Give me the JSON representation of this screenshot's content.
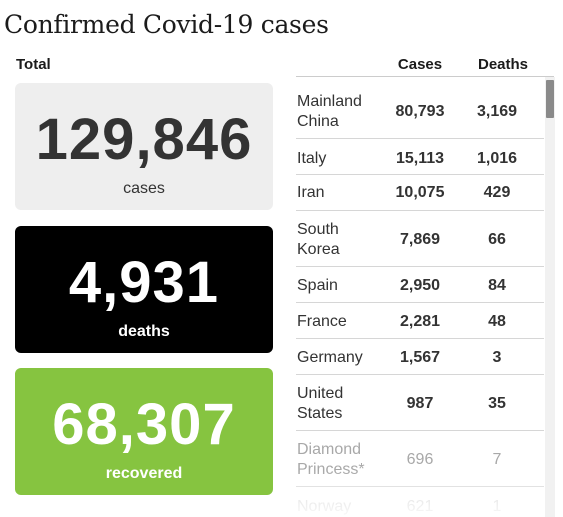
{
  "title": "Confirmed Covid-19 cases",
  "total_label": "Total",
  "cards": {
    "cases": {
      "value": "129,846",
      "label": "cases",
      "color": "#eeeeee"
    },
    "deaths": {
      "value": "4,931",
      "label": "deaths",
      "color": "#000000"
    },
    "recovered": {
      "value": "68,307",
      "label": "recovered",
      "color": "#86c440"
    }
  },
  "table": {
    "headers": {
      "cases": "Cases",
      "deaths": "Deaths"
    },
    "rows": [
      {
        "country_line1": "Mainland",
        "country_line2": "China",
        "cases": "80,793",
        "deaths": "3,169"
      },
      {
        "country_line1": "Italy",
        "country_line2": "",
        "cases": "15,113",
        "deaths": "1,016"
      },
      {
        "country_line1": "Iran",
        "country_line2": "",
        "cases": "10,075",
        "deaths": "429"
      },
      {
        "country_line1": "South",
        "country_line2": "Korea",
        "cases": "7,869",
        "deaths": "66"
      },
      {
        "country_line1": "Spain",
        "country_line2": "",
        "cases": "2,950",
        "deaths": "84"
      },
      {
        "country_line1": "France",
        "country_line2": "",
        "cases": "2,281",
        "deaths": "48"
      },
      {
        "country_line1": "Germany",
        "country_line2": "",
        "cases": "1,567",
        "deaths": "3"
      },
      {
        "country_line1": "United",
        "country_line2": "States",
        "cases": "987",
        "deaths": "35"
      },
      {
        "country_line1": "Diamond",
        "country_line2": "Princess*",
        "cases": "696",
        "deaths": "7"
      },
      {
        "country_line1": "Norway",
        "country_line2": "",
        "cases": "621",
        "deaths": "1"
      }
    ]
  }
}
